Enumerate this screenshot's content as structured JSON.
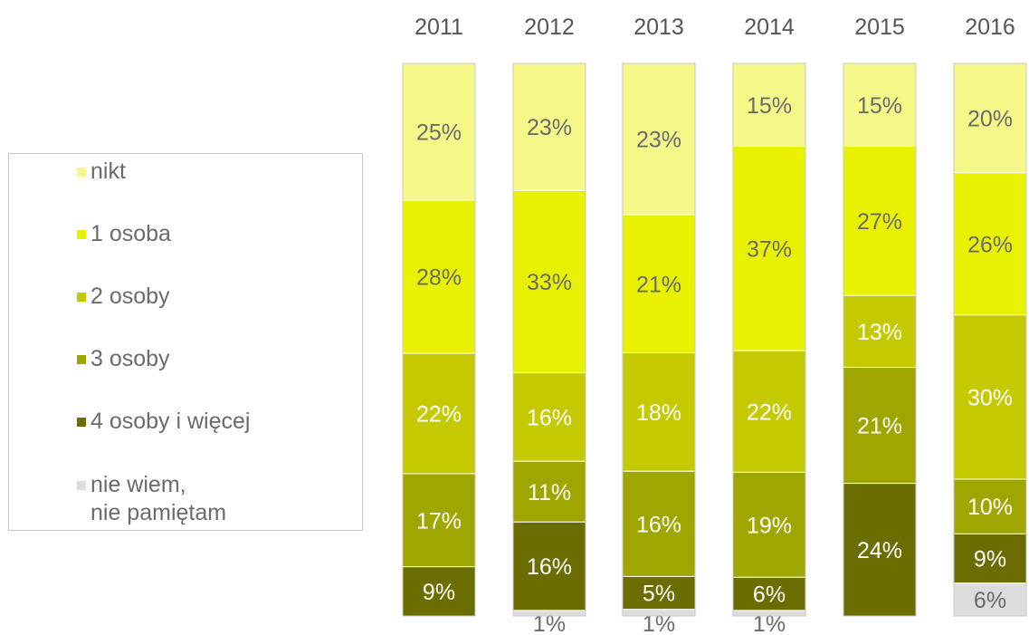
{
  "chart_data": {
    "type": "bar",
    "stacked": true,
    "normalized_percent": true,
    "categories": [
      "2011",
      "2012",
      "2013",
      "2014",
      "2015",
      "2016"
    ],
    "series": [
      {
        "name": "nikt",
        "color": "#f5f788",
        "values": [
          25,
          23,
          23,
          15,
          15,
          20
        ],
        "labels": [
          "25%",
          "23%",
          "23%",
          "15%",
          "15%",
          "20%"
        ]
      },
      {
        "name": "1 osoba",
        "color": "#e8f200",
        "values": [
          28,
          33,
          21,
          37,
          27,
          26
        ],
        "labels": [
          "28%",
          "33%",
          "21%",
          "37%",
          "27%",
          "26%"
        ]
      },
      {
        "name": "2 osoby",
        "color": "#c5ca00",
        "values": [
          22,
          16,
          18,
          22,
          13,
          30
        ],
        "labels": [
          "22%",
          "16%",
          "18%",
          "22%",
          "13%",
          "30%"
        ]
      },
      {
        "name": "3 osoby",
        "color": "#a0a600",
        "values": [
          17,
          11,
          16,
          19,
          21,
          10
        ],
        "labels": [
          "17%",
          "11%",
          "16%",
          "19%",
          "21%",
          "10%"
        ]
      },
      {
        "name": "4 osoby i więcej",
        "color": "#6c6d00",
        "values": [
          9,
          16,
          5,
          6,
          24,
          9
        ],
        "labels": [
          "9%",
          "16%",
          "5%",
          "6%",
          "24%",
          "9%"
        ]
      },
      {
        "name": "nie wiem,\nnie pamiętam",
        "color": "#dcdcdc",
        "values": [
          0,
          1,
          1,
          1,
          0,
          6
        ],
        "labels": [
          "",
          "1%",
          "1%",
          "1%",
          "",
          "6%"
        ]
      }
    ],
    "label_colors": {
      "light": "#6b6b6b",
      "dark": "#ffffff"
    },
    "legend_position": "left",
    "grid": false,
    "title": "",
    "xlabel": "",
    "ylabel": ""
  }
}
